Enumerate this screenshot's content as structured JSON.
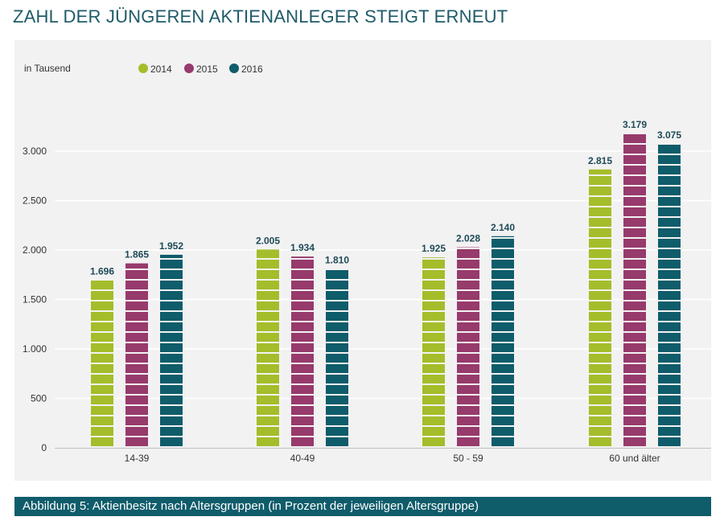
{
  "page": {
    "title": "ZAHL DER JÜNGEREN AKTIENANLEGER STEIGT ERNEUT",
    "caption": "Abbildung 5: Aktienbesitz nach Altersgruppen (in Prozent der jeweiligen Altersgruppe)"
  },
  "colors": {
    "panel_background": "#f2f2f2",
    "gridline": "#ffffff",
    "caption_background": "#0f5c6b",
    "title_text": "#1e5a68"
  },
  "chart_data": {
    "type": "bar",
    "title": "",
    "unit_label": "in Tausend",
    "xlabel": "",
    "ylabel": "",
    "categories": [
      "14-39",
      "40-49",
      "50 - 59",
      "60 und älter"
    ],
    "series": [
      {
        "name": "2014",
        "color": "#a4bd2a",
        "values": [
          1696,
          2005,
          1925,
          2815
        ],
        "labels": [
          "1.696",
          "2.005",
          "1.925",
          "2.815"
        ]
      },
      {
        "name": "2015",
        "color": "#973a6c",
        "values": [
          1865,
          1934,
          2028,
          3179
        ],
        "labels": [
          "1.865",
          "1.934",
          "2.028",
          "3.179"
        ]
      },
      {
        "name": "2016",
        "color": "#0f5c6b",
        "values": [
          1952,
          1810,
          2140,
          3075
        ],
        "labels": [
          "1.952",
          "1.810",
          "2.140",
          "3.075"
        ]
      }
    ],
    "yticks": [
      0,
      500,
      1000,
      1500,
      2000,
      2500,
      3000
    ],
    "ytick_labels": [
      "0",
      "500",
      "1.000",
      "1.500",
      "2.000",
      "2.500",
      "3.000"
    ],
    "ylim": [
      0,
      3500
    ],
    "grid": true,
    "legend_position": "top-left",
    "bar_style": "horizontal-striped"
  }
}
